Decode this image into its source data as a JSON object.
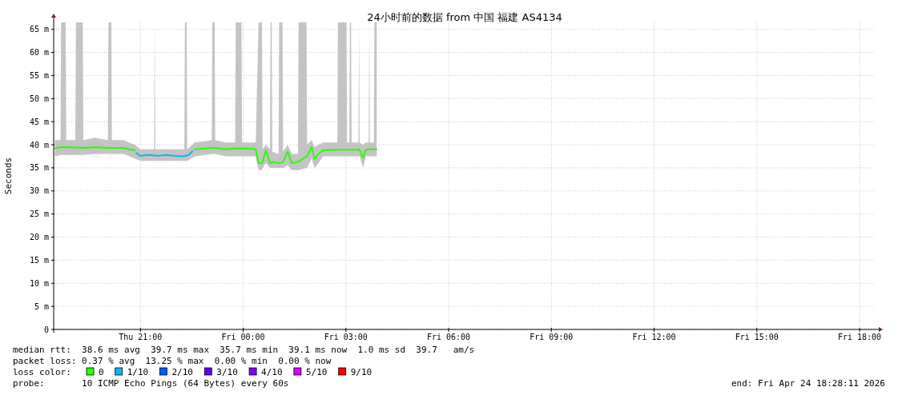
{
  "chart_data": {
    "type": "line",
    "title": "24小时前的数据 from 中国 福建 AS4134",
    "ylabel": "Seconds",
    "xlim": [
      "2026-04-23T18:28",
      "2026-04-24T18:28"
    ],
    "xticks": [
      {
        "value": "2026-04-23T21:00",
        "label": "Thu 21:00"
      },
      {
        "value": "2026-04-24T00:00",
        "label": "Fri 00:00"
      },
      {
        "value": "2026-04-24T03:00",
        "label": "Fri 03:00"
      },
      {
        "value": "2026-04-24T06:00",
        "label": "Fri 06:00"
      },
      {
        "value": "2026-04-24T09:00",
        "label": "Fri 09:00"
      },
      {
        "value": "2026-04-24T12:00",
        "label": "Fri 12:00"
      },
      {
        "value": "2026-04-24T15:00",
        "label": "Fri 15:00"
      },
      {
        "value": "2026-04-24T18:00",
        "label": "Fri 18:00"
      }
    ],
    "ylim": [
      0,
      66.5
    ],
    "yticks": [
      0,
      {
        "value": 5,
        "label": "5 m"
      },
      {
        "value": 10,
        "label": "10 m"
      },
      {
        "value": 15,
        "label": "15 m"
      },
      {
        "value": 20,
        "label": "20 m"
      },
      {
        "value": 25,
        "label": "25 m"
      },
      {
        "value": 30,
        "label": "30 m"
      },
      {
        "value": 35,
        "label": "35 m"
      },
      {
        "value": 40,
        "label": "40 m"
      },
      {
        "value": 45,
        "label": "45 m"
      },
      {
        "value": 50,
        "label": "50 m"
      },
      {
        "value": 55,
        "label": "55 m"
      },
      {
        "value": 60,
        "label": "60 m"
      },
      {
        "value": 65,
        "label": "65 m"
      }
    ],
    "grid": true,
    "marker": "none",
    "line_style": "solid",
    "legend": "bottom",
    "legend_title": "loss color:",
    "series": [
      {
        "name": "0",
        "color": "#26ff00",
        "x": [
          "2026-04-23T18:30",
          "2026-04-23T18:40",
          "2026-04-23T18:41",
          "2026-04-23T18:49",
          "2026-04-23T18:50",
          "2026-04-23T19:06",
          "2026-04-23T19:07",
          "2026-04-23T19:19",
          "2026-04-23T19:20",
          "2026-04-23T19:40",
          "2026-04-23T20:03",
          "2026-04-23T20:04",
          "2026-04-23T20:09",
          "2026-04-23T20:10",
          "2026-04-23T20:30",
          "2026-04-23T20:50",
          "2026-04-23T21:00",
          "2026-04-23T21:24",
          "2026-04-23T21:25",
          "2026-04-23T21:26",
          "2026-04-23T22:00",
          "2026-04-23T22:17",
          "2026-04-23T22:18",
          "2026-04-23T22:21",
          "2026-04-23T22:22",
          "2026-04-23T22:35",
          "2026-04-23T23:05",
          "2026-04-23T23:06",
          "2026-04-23T23:10",
          "2026-04-23T23:11",
          "2026-04-23T23:30",
          "2026-04-23T23:46",
          "2026-04-23T23:47",
          "2026-04-23T23:57",
          "2026-04-23T23:58",
          "2026-04-24T00:15",
          "2026-04-24T00:22",
          "2026-04-24T00:27",
          "2026-04-24T00:33",
          "2026-04-24T00:34",
          "2026-04-24T00:40",
          "2026-04-24T00:47",
          "2026-04-24T00:48",
          "2026-04-24T00:50",
          "2026-04-24T00:51",
          "2026-04-24T01:02",
          "2026-04-24T01:03",
          "2026-04-24T01:09",
          "2026-04-24T01:10",
          "2026-04-24T01:18",
          "2026-04-24T01:25",
          "2026-04-24T01:36",
          "2026-04-24T01:37",
          "2026-04-24T01:51",
          "2026-04-24T01:52",
          "2026-04-24T02:00",
          "2026-04-24T02:05",
          "2026-04-24T02:12",
          "2026-04-24T02:20",
          "2026-04-24T02:45",
          "2026-04-24T02:46",
          "2026-04-24T03:01",
          "2026-04-24T03:02",
          "2026-04-24T03:06",
          "2026-04-24T03:07",
          "2026-04-24T03:09",
          "2026-04-24T03:10",
          "2026-04-24T03:22",
          "2026-04-24T03:23",
          "2026-04-24T03:24",
          "2026-04-24T03:30",
          "2026-04-24T03:35",
          "2026-04-24T03:40",
          "2026-04-24T03:41",
          "2026-04-24T03:42",
          "2026-04-24T03:49",
          "2026-04-24T03:50",
          "2026-04-24T03:54"
        ],
        "values": [
          39.2,
          39.5,
          39.5,
          39.5,
          39.5,
          39.4,
          39.4,
          39.3,
          39.3,
          39.5,
          39.3,
          39.3,
          39.3,
          39.3,
          39.3,
          38.8,
          null,
          null,
          null,
          null,
          null,
          null,
          null,
          null,
          null,
          39.0,
          39.3,
          39.3,
          39.3,
          39.3,
          39.0,
          39.2,
          39.2,
          39.2,
          39.2,
          39.1,
          39.0,
          36.0,
          36.0,
          36.3,
          38.8,
          36.0,
          36.0,
          36.0,
          36.3,
          36.0,
          36.0,
          36.2,
          36.3,
          38.5,
          36.0,
          36.3,
          36.3,
          37.5,
          37.5,
          39.5,
          37.0,
          38.0,
          38.8,
          38.9,
          38.9,
          38.9,
          38.9,
          38.9,
          38.9,
          38.9,
          38.9,
          38.9,
          38.9,
          38.9,
          37.2,
          38.9,
          39.0,
          39.0,
          39.0,
          39.0,
          39.0,
          39.0
        ],
        "lower": [
          37.5,
          37.8,
          37.8,
          37.8,
          37.8,
          37.8,
          37.8,
          37.8,
          37.8,
          38.0,
          38.0,
          38.0,
          38.0,
          38.0,
          38.0,
          37.0,
          36.5,
          36.5,
          36.5,
          36.5,
          36.5,
          36.5,
          36.5,
          36.5,
          36.5,
          37.5,
          38.0,
          38.0,
          38.0,
          38.0,
          37.5,
          37.5,
          37.5,
          37.5,
          37.5,
          37.5,
          37.5,
          34.5,
          34.5,
          35.0,
          36.0,
          35.0,
          35.0,
          35.0,
          35.0,
          35.0,
          35.0,
          35.0,
          35.0,
          35.5,
          34.5,
          34.5,
          34.5,
          35.0,
          35.0,
          37.0,
          35.0,
          36.0,
          37.5,
          37.5,
          37.5,
          37.5,
          37.5,
          37.5,
          37.5,
          37.5,
          37.5,
          37.5,
          37.5,
          37.5,
          35.0,
          37.5,
          37.5,
          37.5,
          37.5,
          37.5,
          37.5,
          37.5
        ],
        "upper": [
          41.0,
          41.0,
          66.5,
          66.5,
          41.0,
          41.0,
          66.5,
          66.5,
          41.0,
          41.5,
          41.0,
          66.5,
          66.5,
          41.0,
          41.0,
          40.0,
          39.0,
          39.0,
          66.5,
          39.0,
          39.0,
          39.0,
          66.5,
          66.5,
          39.0,
          40.5,
          41.0,
          66.5,
          66.5,
          41.0,
          40.5,
          40.5,
          66.5,
          66.5,
          40.5,
          40.5,
          40.5,
          66.5,
          66.5,
          39.0,
          40.0,
          39.0,
          66.5,
          66.5,
          38.5,
          38.0,
          66.5,
          66.5,
          38.5,
          40.0,
          38.0,
          38.0,
          66.5,
          66.5,
          40.0,
          41.0,
          39.5,
          40.0,
          40.5,
          40.5,
          66.5,
          66.5,
          40.5,
          40.5,
          66.5,
          66.5,
          40.5,
          40.5,
          66.5,
          40.5,
          40.0,
          40.5,
          40.5,
          66.5,
          40.5,
          40.5,
          66.5,
          66.5
        ]
      },
      {
        "name": "1/10",
        "color": "#00b8ff",
        "x": [
          "2026-04-23T20:53",
          "2026-04-23T21:00",
          "2026-04-23T21:15",
          "2026-04-23T21:30",
          "2026-04-23T21:45",
          "2026-04-23T22:00",
          "2026-04-23T22:15",
          "2026-04-23T22:25",
          "2026-04-23T22:31"
        ],
        "values": [
          38.2,
          37.6,
          37.8,
          37.6,
          37.8,
          37.6,
          37.5,
          37.8,
          38.6
        ]
      },
      {
        "name": "2/10",
        "color": "#0059ff"
      },
      {
        "name": "3/10",
        "color": "#5e00ff"
      },
      {
        "name": "4/10",
        "color": "#7e00ff"
      },
      {
        "name": "5/10",
        "color": "#dd00ff"
      },
      {
        "name": "9/10",
        "color": "#ff0000"
      }
    ],
    "annotations": [
      "median rtt:  38.6 ms avg  39.7 ms max  35.7 ms min  39.1 ms now  1.0 ms sd  39.7   am/s",
      "packet loss: 0.37 % avg  13.25 % max  0.00 % min  0.00 % now",
      "probe:       10 ICMP Echo Pings (64 Bytes) every 60s",
      "end: Fri Apr 24 18:28:11 2026"
    ]
  }
}
